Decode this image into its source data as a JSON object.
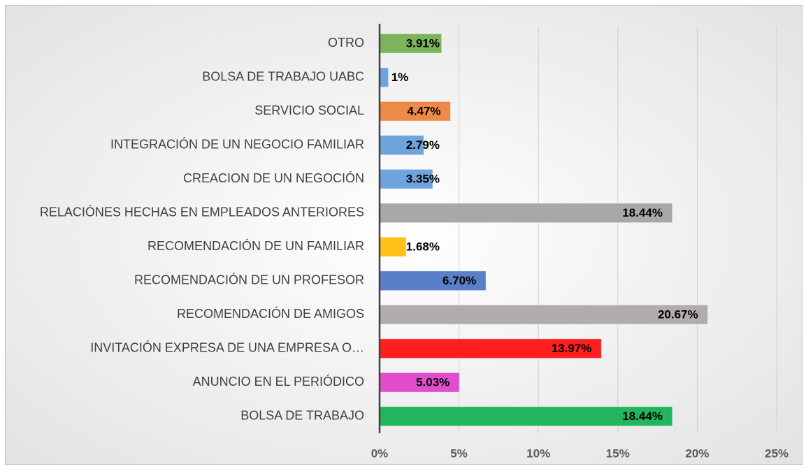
{
  "chart_data": {
    "type": "bar",
    "orientation": "horizontal",
    "categories": [
      "OTRO",
      "BOLSA DE TRABAJO UABC",
      "SERVICIO SOCIAL",
      "INTEGRACIÓN DE UN NEGOCIO FAMILIAR",
      "CREACION DE UN NEGOCIÓN",
      "RELACIÓNES HECHAS EN EMPLEADOS ANTERIORES",
      "RECOMENDACIÓN DE UN FAMILIAR",
      "RECOMENDACIÓN DE UN PROFESOR",
      "RECOMENDACIÓN DE AMIGOS",
      "INVITACIÓN EXPRESA DE UNA EMPRESA O…",
      "ANUNCIO EN EL PERIÓDICO",
      "BOLSA DE TRABAJO"
    ],
    "values": [
      3.91,
      0.56,
      4.47,
      2.79,
      3.35,
      18.44,
      1.68,
      6.7,
      20.67,
      13.97,
      5.03,
      18.44
    ],
    "value_labels": [
      "3.91%",
      "1%",
      "4.47%",
      "2.79%",
      "3.35%",
      "18.44%",
      "1.68%",
      "6.70%",
      "20.67%",
      "13.97%",
      "5.03%",
      "18.44%"
    ],
    "colors": [
      "#7cb45c",
      "#6fa3dc",
      "#ee8a47",
      "#6fa3dc",
      "#6fa3dc",
      "#a8a8a8",
      "#ffc21a",
      "#5b7ec9",
      "#b0adac",
      "#ff1f1f",
      "#e04ecb",
      "#22b55e"
    ],
    "xlim": [
      0,
      25
    ],
    "xticks": [
      {
        "value": 0,
        "label": "0%"
      },
      {
        "value": 5,
        "label": "5%"
      },
      {
        "value": 10,
        "label": "10%"
      },
      {
        "value": 15,
        "label": "15%"
      },
      {
        "value": 20,
        "label": "20%"
      },
      {
        "value": 25,
        "label": "25%"
      }
    ],
    "grid": true
  }
}
